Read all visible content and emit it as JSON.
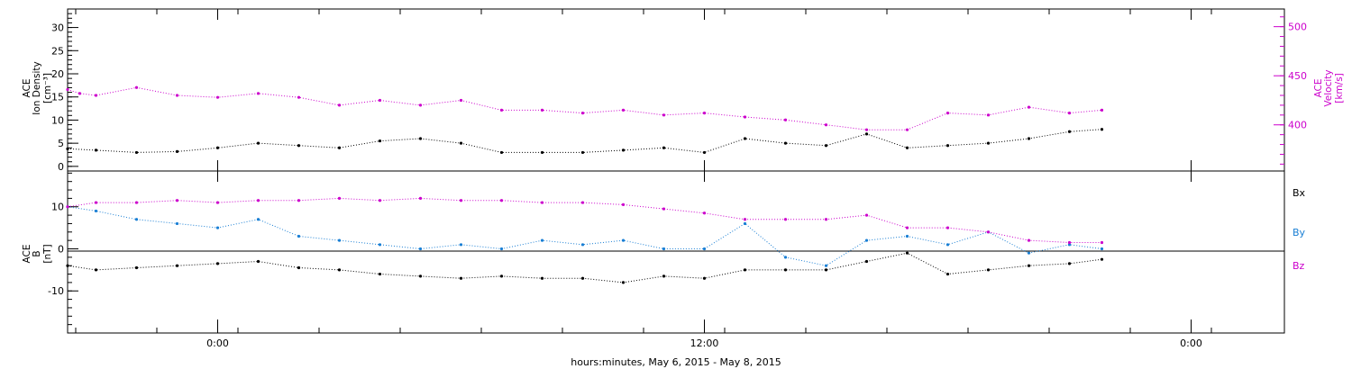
{
  "xlabel": "hours:minutes, May  6, 2015 - May  8, 2015",
  "x_ticks": [
    {
      "label": "0:00",
      "hour": 24
    },
    {
      "label": "12:00",
      "hour": 36
    },
    {
      "label": "0:00",
      "hour": 48
    }
  ],
  "colors": {
    "black": "#000000",
    "magenta": "#cc00cc",
    "blue": "#1a7fd4"
  },
  "chart_data": [
    {
      "type": "scatter",
      "panel": "ion",
      "ylabel_left": [
        "ACE",
        "Ion Density",
        "[cm⁻³]"
      ],
      "ylabel_right": [
        "ACE",
        "Velocity",
        "[km/s]"
      ],
      "ylim_left": [
        -1,
        34
      ],
      "ylim_right": [
        353,
        518
      ],
      "yticks_left": [
        0,
        5,
        10,
        15,
        20,
        25,
        30
      ],
      "yticks_right": [
        400,
        450,
        500
      ],
      "xlim_hours": [
        20.3,
        50.3
      ],
      "series": [
        {
          "name": "density",
          "axis": "left",
          "color": "#000000",
          "x": [
            20.3,
            21,
            22,
            23,
            24,
            25,
            26,
            27,
            28,
            29,
            30,
            31,
            32,
            33,
            34,
            35,
            36,
            37,
            38,
            39,
            40,
            41,
            42,
            43,
            44,
            45,
            45.8
          ],
          "y": [
            3.8,
            3.5,
            3,
            3.2,
            4,
            5,
            4.5,
            4,
            5.5,
            6,
            5,
            3,
            3,
            3,
            3.5,
            4,
            3,
            6,
            5,
            4.5,
            7,
            4,
            4.5,
            5,
            6,
            7.5,
            8
          ]
        },
        {
          "name": "speed",
          "axis": "right",
          "color": "#cc00cc",
          "x": [
            20.3,
            20.6,
            21,
            22,
            23,
            24,
            25,
            26,
            27,
            28,
            29,
            30,
            31,
            32,
            33,
            34,
            35,
            36,
            37,
            38,
            39,
            40,
            41,
            42,
            43,
            44,
            45,
            45.8
          ],
          "y": [
            436,
            432,
            430,
            438,
            430,
            428,
            432,
            428,
            420,
            425,
            420,
            425,
            415,
            415,
            412,
            415,
            410,
            412,
            408,
            405,
            400,
            395,
            395,
            412,
            410,
            418,
            412,
            415
          ]
        }
      ]
    },
    {
      "type": "scatter",
      "panel": "imf",
      "ylabel_left": [
        "ACE",
        "B",
        "[nT]"
      ],
      "ylim": [
        -20,
        18.5
      ],
      "yticks": [
        -10,
        0,
        10
      ],
      "xlim_hours": [
        20.3,
        50.3
      ],
      "legend": [
        "Bx",
        "By",
        "Bz"
      ],
      "series": [
        {
          "name": "Bx",
          "color": "#000000",
          "x": [
            20.3,
            21,
            22,
            23,
            24,
            25,
            26,
            27,
            28,
            29,
            30,
            31,
            32,
            33,
            34,
            35,
            36,
            37,
            38,
            39,
            40,
            41,
            42,
            43,
            44,
            45,
            45.8
          ],
          "y": [
            -4,
            -5,
            -4.5,
            -4,
            -3.5,
            -3,
            -4.5,
            -5,
            -6,
            -6.5,
            -7,
            -6.5,
            -7,
            -7,
            -8,
            -6.5,
            -7,
            -5,
            -5,
            -5,
            -3,
            -1,
            -6,
            -5,
            -4,
            -3.5,
            -2.5
          ]
        },
        {
          "name": "By",
          "color": "#1a7fd4",
          "x": [
            20.3,
            21,
            22,
            23,
            24,
            25,
            26,
            27,
            28,
            29,
            30,
            31,
            32,
            33,
            34,
            35,
            36,
            37,
            38,
            39,
            40,
            41,
            42,
            43,
            44,
            45,
            45.8
          ],
          "y": [
            10,
            9,
            7,
            6,
            5,
            7,
            3,
            2,
            1,
            0,
            1,
            0,
            2,
            1,
            2,
            0,
            0,
            6,
            -2,
            -4,
            2,
            3,
            1,
            4,
            -1,
            1,
            0
          ]
        },
        {
          "name": "Bz",
          "color": "#cc00cc",
          "x": [
            20.3,
            21,
            22,
            23,
            24,
            25,
            26,
            27,
            28,
            29,
            30,
            31,
            32,
            33,
            34,
            35,
            36,
            37,
            38,
            39,
            40,
            41,
            42,
            43,
            44,
            45,
            45.8
          ],
          "y": [
            10,
            11,
            11,
            11.5,
            11,
            11.5,
            11.5,
            12,
            11.5,
            12,
            11.5,
            11.5,
            11,
            11,
            10.5,
            9.5,
            8.5,
            7,
            7,
            7,
            8,
            5,
            5,
            4,
            2,
            1.5,
            1.5
          ]
        }
      ]
    }
  ]
}
